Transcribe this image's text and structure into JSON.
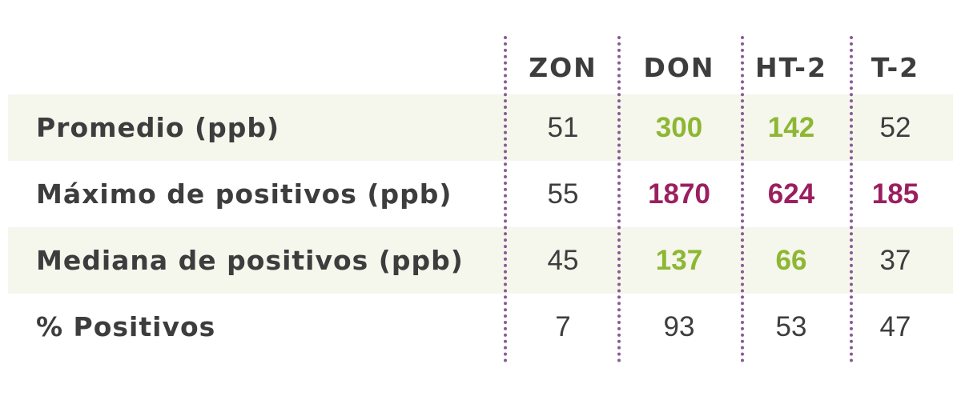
{
  "table": {
    "columns": [
      "ZON",
      "DON",
      "HT-2",
      "T-2"
    ],
    "rows": [
      {
        "label": "Promedio (ppb)",
        "values": [
          51,
          300,
          142,
          52
        ],
        "colors": [
          null,
          "#8db733",
          "#8db733",
          null
        ]
      },
      {
        "label": "Máximo de positivos (ppb)",
        "values": [
          55,
          1870,
          624,
          185
        ],
        "colors": [
          null,
          "#9b1f5f",
          "#9b1f5f",
          "#9b1f5f"
        ]
      },
      {
        "label": "Mediana de positivos (ppb)",
        "values": [
          45,
          137,
          66,
          37
        ],
        "colors": [
          null,
          "#8db733",
          "#8db733",
          null
        ]
      },
      {
        "label": "% Positivos",
        "values": [
          7,
          93,
          53,
          47
        ],
        "colors": [
          null,
          null,
          null,
          null
        ]
      }
    ]
  }
}
